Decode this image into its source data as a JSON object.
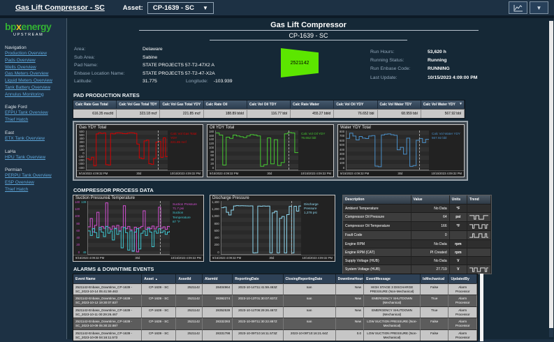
{
  "topbar": {
    "title": "Gas Lift Compressor - SC",
    "asset_label": "Asset:",
    "asset_value": "CP-1639 - SC"
  },
  "sidebar": {
    "logo_bp": "bp",
    "logo_x": "x",
    "logo_energy": "energy",
    "logo_sub": "UPSTREAM",
    "sections": [
      {
        "label": "Navigation",
        "links": [
          "Production Overview",
          "Pads Overview",
          "Wells Overview",
          "Gas Meters Overview",
          "Liquid Meters Overview",
          "Tank Battery Overview",
          "Annulus Monitoring"
        ]
      },
      {
        "label": "Eagle Ford",
        "links": [
          "EFPU Tank Overview",
          "Thief Hatch"
        ]
      },
      {
        "label": "East",
        "links": [
          "ETX Tank Overview"
        ]
      },
      {
        "label": "LaHa",
        "links": [
          "HPU Tank Overview"
        ]
      },
      {
        "label": "Permian",
        "links": [
          "PERPU Tank Overview",
          "ESP Overview",
          "Thief Hatch"
        ]
      }
    ]
  },
  "header": {
    "title": "Gas Lift Compressor",
    "subtitle": "CP-1639 - SC"
  },
  "info": {
    "rows": [
      {
        "label": "Area:",
        "value": "Delaware"
      },
      {
        "label": "Sub Area:",
        "value": "Sabine"
      },
      {
        "label": "Pad Name:",
        "value": "STATE PROJECTS 57-T2-47X2 A"
      },
      {
        "label": "Enbase Location Name:",
        "value": "STATE PROJECTS 57-T2-47-X2A"
      }
    ],
    "lat_label": "Latitude:",
    "lat_value": "31.775",
    "lon_label": "Longitude:",
    "lon_value": "-103.939",
    "badge_value": "2521142",
    "badge_color": "#5ce600",
    "run_rows": [
      {
        "label": "Run Hours:",
        "value": "53,620 h"
      },
      {
        "label": "Running Status:",
        "value": "Running"
      },
      {
        "label": "Run Enbase Code:",
        "value": "RUNNING"
      },
      {
        "label": "Last Update:",
        "value": "10/15/2023 4:09:00 PM"
      }
    ]
  },
  "pad_section": {
    "title": "PAD PRODUCTION RATES",
    "columns": [
      {
        "header": "Calc Rate Gas Total",
        "value": "616.35 mscfd"
      },
      {
        "header": "Calc Vol Gas Total TDY",
        "value": "323.18 mcf"
      },
      {
        "header": "Calc Vol Gas Total YDY",
        "value": "221.85 mcf"
      },
      {
        "header": "Calc Rate Oil",
        "value": "188.89 bbld"
      },
      {
        "header": "Calc Vol Oil TDY",
        "value": "116.77 bbl"
      },
      {
        "header": "Calc Rate Water",
        "value": "455.27 bbld"
      },
      {
        "header": "Calc Vol Oil YDY",
        "value": "76.652 bbl"
      },
      {
        "header": "Calc Vol Water TDY",
        "value": "68.959 bbl"
      },
      {
        "header": "Calc Vol Water YDY",
        "value": "567.92 bbl"
      }
    ]
  },
  "charts": {
    "gas_ydy": {
      "title": "Gas YDY Total",
      "x_labels": [
        "9/15/2023 4:09:32 PM",
        "30d",
        "10/15/2023 4:09:32 PM"
      ],
      "axes": [
        {
          "color": "#cccccc",
          "ticks": [
            "600",
            "500",
            "400",
            "300",
            "200",
            "100",
            "0",
            "-100",
            "-200",
            "-300",
            "-400"
          ]
        }
      ],
      "series": [
        {
          "name": "Calc Vol Gas Total YDY",
          "value": "221.85 mcf",
          "color": "#d40000",
          "min": -400,
          "max": 600,
          "values": [
            -130,
            -160,
            -90,
            -320,
            530,
            560,
            545,
            555,
            -290,
            -300,
            545,
            530,
            555,
            560,
            550,
            540,
            535,
            550,
            560,
            555,
            545,
            260,
            -110,
            -130,
            345,
            365,
            -265,
            -280,
            -120,
            315,
            330,
            -95,
            425,
            -75,
            465
          ]
        }
      ]
    },
    "oil_ydy": {
      "title": "Oil YDY Total",
      "x_labels": [
        "9/15/2023 4:09:32 PM",
        "30d",
        "10/15/2023 4:09:32 PM"
      ],
      "axes": [
        {
          "color": "#cccccc",
          "ticks": [
            "180",
            "160",
            "140",
            "120",
            "100",
            "80",
            "60",
            "40",
            "20",
            "0"
          ]
        }
      ],
      "series": [
        {
          "name": "Calc Vol Oil YDY",
          "value": "76.652 bbl",
          "color": "#46c832",
          "min": 0,
          "max": 180,
          "values": [
            172,
            162,
            18,
            152,
            146,
            162,
            158,
            154,
            150,
            158,
            164,
            162,
            158,
            12,
            20,
            148,
            24,
            140,
            16,
            30,
            168,
            174,
            172,
            78,
            80
          ]
        }
      ]
    },
    "water_ydy": {
      "title": "Water YDY Total",
      "x_labels": [
        "9/15/2023 4:09:32 PM",
        "30d",
        "10/15/2023 4:09:32 PM"
      ],
      "axes": [
        {
          "color": "#cccccc",
          "ticks": [
            "800",
            "700",
            "600",
            "500",
            "400",
            "300",
            "200",
            "100",
            "0"
          ]
        }
      ],
      "series": [
        {
          "name": "Calc Vol Water YDY",
          "value": "567.92 bbl",
          "color": "#4a8fc8",
          "min": 0,
          "max": 800,
          "values": [
            650,
            760,
            700,
            615,
            690,
            655,
            645,
            700,
            708,
            58,
            45,
            722,
            738,
            745,
            728,
            715,
            405,
            458,
            312,
            655,
            52,
            68,
            608,
            648,
            558,
            628,
            632
          ]
        }
      ]
    },
    "suction": {
      "title": "Suction Pressure& Temperature",
      "x_labels": [
        "9/15/2023 4:09:32 PM",
        "30d",
        "10/15/2023 4:09:32 PM"
      ],
      "axes": [
        {
          "color": "#d24fd2",
          "ticks": [
            "140",
            "120",
            "100",
            "80",
            "60",
            "40",
            "20",
            "0"
          ]
        },
        {
          "color": "#3fc8d2",
          "ticks": [
            "139",
            "",
            "",
            "",
            "",
            "",
            "",
            "49"
          ]
        }
      ],
      "series": [
        {
          "name": "Suction Pressure",
          "value": "71.7 psi",
          "color": "#d24fd2",
          "min": 0,
          "max": 140,
          "values": [
            72,
            95,
            58,
            76,
            112,
            64,
            73,
            68,
            138,
            70,
            65,
            74,
            68,
            76,
            60,
            72,
            130,
            67,
            73,
            64,
            6,
            71,
            3,
            69,
            73,
            116,
            65,
            71,
            67,
            74,
            66,
            72,
            126,
            68,
            72,
            65,
            73,
            71
          ]
        },
        {
          "name": "Suction Temperature",
          "value": "87 °F",
          "color": "#3fc8d2",
          "min": 49,
          "max": 139,
          "values": [
            88,
            80,
            92,
            85,
            76,
            94,
            86,
            78,
            96,
            84,
            88,
            72,
            92,
            82,
            88,
            58,
            94,
            85,
            54,
            88,
            52,
            86,
            92,
            56,
            84,
            88,
            80,
            92,
            86,
            60,
            88,
            84,
            92,
            85,
            88,
            82,
            86,
            88
          ]
        }
      ]
    },
    "discharge": {
      "title": "Discharge Pressure",
      "x_labels": [
        "9/15/2023 4:09:32 PM",
        "30d",
        "10/15/2023 4:09:32 PM"
      ],
      "axes": [
        {
          "color": "#cccccc",
          "ticks": [
            "1,400",
            "1,200",
            "1,000",
            "800",
            "600",
            "400",
            "200",
            "0"
          ]
        }
      ],
      "series": [
        {
          "name": "Discharge Pressure",
          "value": "1,278 psi",
          "color": "#8fd8f0",
          "min": 0,
          "max": 1400,
          "values": [
            1245,
            1262,
            1120,
            1045,
            1180,
            1292,
            1302,
            1298,
            1300,
            1298,
            1296,
            1292,
            1294,
            2,
            6,
            1290,
            1286,
            1292,
            1288,
            1290,
            2,
            1105,
            1152,
            2,
            955,
            1005,
            2,
            1055,
            1282,
            2,
            1286,
            1152,
            1292,
            1290
          ]
        }
      ]
    }
  },
  "compressor_section": {
    "title": "COMPRESSOR PROCESS DATA",
    "table": {
      "headers": [
        "Description",
        "Value",
        "Units",
        "Trend"
      ],
      "rows": [
        {
          "description": "Ambient Temperature",
          "value": "No Data",
          "units": "°F",
          "trend": null
        },
        {
          "description": "Compressor Oil Pressure",
          "value": "64",
          "units": "psi",
          "trend": [
            1,
            1,
            1,
            0,
            1,
            1,
            0,
            0,
            0,
            1,
            1,
            1,
            1
          ]
        },
        {
          "description": "Compressor Oil Temperature",
          "value": "166",
          "units": "°F",
          "trend": [
            1,
            1,
            0,
            1,
            1,
            1,
            0,
            0,
            1,
            1,
            0,
            1,
            1
          ]
        },
        {
          "description": "Fault Code",
          "value": "0",
          "units": "",
          "trend": [
            0,
            0,
            1,
            0,
            0,
            0,
            1,
            1,
            0,
            0,
            1,
            0,
            0
          ]
        },
        {
          "description": "Engine RPM",
          "value": "No Data",
          "units": "rpm",
          "trend": null
        },
        {
          "description": "Engine RPM (CAT)",
          "value": "PI Created",
          "units": "rpm",
          "trend": null
        },
        {
          "description": "Supply Voltage (HUB)",
          "value": "No Data",
          "units": "V",
          "trend": null
        },
        {
          "description": "System Voltage (HUB)",
          "value": "27.719",
          "units": "V",
          "trend": [
            1,
            1,
            0,
            1,
            1,
            0,
            0,
            1,
            1,
            1,
            0,
            1,
            1
          ]
        }
      ]
    }
  },
  "alarms_section": {
    "title": "ALARMS & DOWNTIME EVENTS",
    "headers": [
      "Event Name",
      "Asset",
      "AssetId",
      "AlarmId",
      "ReportingDate",
      "ClosingReportingDate",
      "DowntimeHours",
      "EventMessage",
      "IsMechanical",
      "UpdatedBy"
    ],
    "sort_column": "Asset",
    "rows": [
      {
        "event_name": "2521142-Enbase_Downtime_CP-1639 - SC_2023-10-14 05:41:59.463",
        "asset": "CP-1639 - SC",
        "asset_id": "2521142",
        "alarm_id": "28404964",
        "reporting_date": "2023-10-14T11:41:59.463Z",
        "closing_reporting_date": "nan",
        "downtime_hours": "New",
        "event_message": "HIGH STAGE 3 DISCHARGE PRESSURE (Non-Mechanical)",
        "is_mechanical": "False",
        "updated_by": "Alarm Processor"
      },
      {
        "event_name": "2521142-Enbase_Downtime_CP-1639 - SC_2023-10-12 19:30:07.837",
        "asset": "CP-1639 - SC",
        "asset_id": "2521142",
        "alarm_id": "28392274",
        "reporting_date": "2023-10-13T01:30:07.837Z",
        "closing_reporting_date": "nan",
        "downtime_hours": "New",
        "event_message": "EMERGENCY SHUTDOWN (Mechanical)",
        "is_mechanical": "True",
        "updated_by": "Alarm Processor"
      },
      {
        "event_name": "2521142-Enbase_Downtime_CP-1639 - SC_2023-10-11 00:29:26.467",
        "asset": "CP-1639 - SC",
        "asset_id": "2521142",
        "alarm_id": "28352539",
        "reporting_date": "2023-10-11T06:29:26.467Z",
        "closing_reporting_date": "nan",
        "downtime_hours": "New",
        "event_message": "EMERGENCY SHUTDOWN (Mechanical)",
        "is_mechanical": "True",
        "updated_by": "Alarm Processor"
      },
      {
        "event_name": "2521142-Enbase_Downtime_CP-1639 - SC_2023-10-09 05:30:22.887",
        "asset": "CP-1639 - SC",
        "asset_id": "2521142",
        "alarm_id": "28332393",
        "reporting_date": "2023-10-09T11:30:22.887Z",
        "closing_reporting_date": "nan",
        "downtime_hours": "New",
        "event_message": "LOW SUCTION PRESSURE (Non-Mechanical)",
        "is_mechanical": "False",
        "updated_by": "Alarm Processor"
      },
      {
        "event_name": "2521142-Enbase_Downtime_CP-1639 - SC_2023-10-09 04:16:11.573",
        "asset": "CP-1639 - SC",
        "asset_id": "2521142",
        "alarm_id": "28331798",
        "reporting_date": "2023-10-09T10:16:11.573Z",
        "closing_reporting_date": "2023-10-09T10:16:21.64Z",
        "downtime_hours": "0.0",
        "event_message": "LOW SUCTION PRESSURE (Non-Mechanical)",
        "is_mechanical": "False",
        "updated_by": "Alarm Processor"
      }
    ]
  }
}
